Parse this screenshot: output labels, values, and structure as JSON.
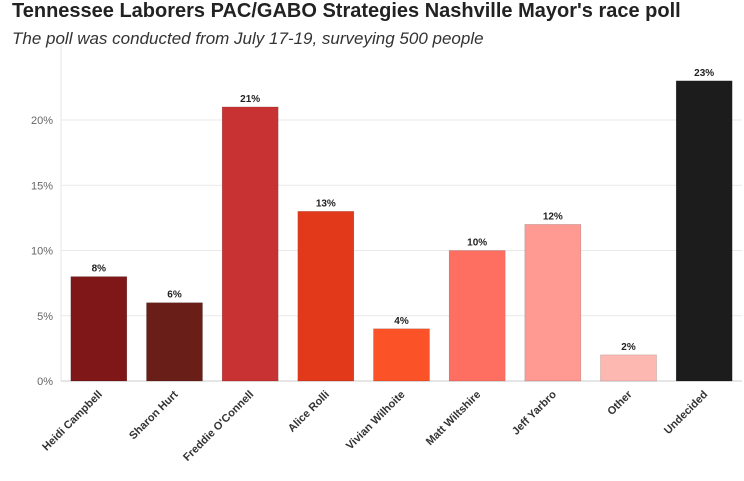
{
  "header": {
    "title": "Tennessee Laborers PAC/GABO Strategies Nashville Mayor's race poll",
    "subtitle": "The poll was conducted from July 17-19, surveying 500 people"
  },
  "chart_data": {
    "type": "bar",
    "title": "Tennessee Laborers PAC/GABO Strategies Nashville Mayor's race poll",
    "subtitle": "The poll was conducted from July 17-19, surveying 500 people",
    "xlabel": "",
    "ylabel": "",
    "ylim": [
      0,
      25
    ],
    "y_ticks": [
      0,
      5,
      10,
      15,
      20
    ],
    "y_tick_labels": [
      "0%",
      "5%",
      "10%",
      "15%",
      "20%"
    ],
    "grid": true,
    "categories": [
      "Heidi Campbell",
      "Sharon Hurt",
      "Freddie O'Connell",
      "Alice Rolli",
      "Vivian Wilhoite",
      "Matt Wiltshire",
      "Jeff Yarbro",
      "Other",
      "Undecided"
    ],
    "values": [
      8,
      6,
      21,
      13,
      4,
      10,
      12,
      2,
      23
    ],
    "data_labels": [
      "8%",
      "6%",
      "21%",
      "13%",
      "4%",
      "10%",
      "12%",
      "2%",
      "23%"
    ],
    "colors": [
      "#7f1618",
      "#6a1e18",
      "#c83232",
      "#e2391b",
      "#fb5228",
      "#fe6f62",
      "#fe9a92",
      "#feb8b2",
      "#1c1c1c"
    ]
  }
}
